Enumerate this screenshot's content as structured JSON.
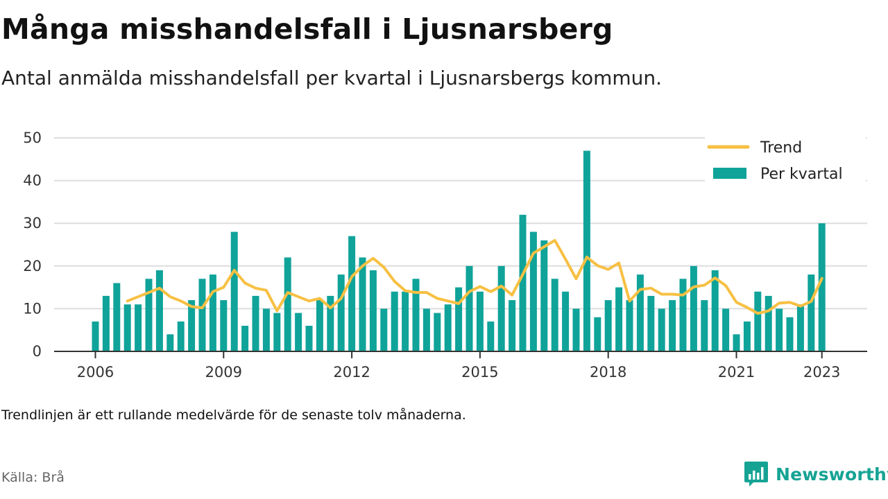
{
  "header": {
    "title": "Många misshandelsfall i Ljusnarsberg",
    "subtitle": "Antal anmälda misshandelsfall per kvartal i Ljusnarsbergs kommun."
  },
  "footer": {
    "note": "Trendlinjen är ett rullande medelvärde för de senaste tolv månaderna.",
    "source": "Källa: Brå",
    "brand": "Newsworthy"
  },
  "colors": {
    "bar": "#0fa39a",
    "trend": "#f7c043",
    "grid": "#dddddd",
    "axis": "#333333",
    "brand": "#16a394"
  },
  "chart_data": {
    "type": "bar",
    "x_ticks": [
      "2006",
      "2009",
      "2012",
      "2015",
      "2018",
      "2021",
      "2023"
    ],
    "y_ticks": [
      0,
      10,
      20,
      30,
      40,
      50
    ],
    "ylim": [
      0,
      50
    ],
    "grid": true,
    "legend_position": "top-right",
    "categories": [
      "2006 K1",
      "2006 K2",
      "2006 K3",
      "2006 K4",
      "2007 K1",
      "2007 K2",
      "2007 K3",
      "2007 K4",
      "2008 K1",
      "2008 K2",
      "2008 K3",
      "2008 K4",
      "2009 K1",
      "2009 K2",
      "2009 K3",
      "2009 K4",
      "2010 K1",
      "2010 K2",
      "2010 K3",
      "2010 K4",
      "2011 K1",
      "2011 K2",
      "2011 K3",
      "2011 K4",
      "2012 K1",
      "2012 K2",
      "2012 K3",
      "2012 K4",
      "2013 K1",
      "2013 K2",
      "2013 K3",
      "2013 K4",
      "2014 K1",
      "2014 K2",
      "2014 K3",
      "2014 K4",
      "2015 K1",
      "2015 K2",
      "2015 K3",
      "2015 K4",
      "2016 K1",
      "2016 K2",
      "2016 K3",
      "2016 K4",
      "2017 K1",
      "2017 K2",
      "2017 K3",
      "2017 K4",
      "2018 K1",
      "2018 K2",
      "2018 K3",
      "2018 K4",
      "2019 K1",
      "2019 K2",
      "2019 K3",
      "2019 K4",
      "2020 K1",
      "2020 K2",
      "2020 K3",
      "2020 K4",
      "2021 K1",
      "2021 K2",
      "2021 K3",
      "2021 K4",
      "2022 K1",
      "2022 K2",
      "2022 K3",
      "2022 K4",
      "2023 K1"
    ],
    "series": [
      {
        "name": "Per kvartal",
        "type": "bar",
        "values": [
          7,
          13,
          16,
          11,
          11,
          17,
          19,
          4,
          7,
          12,
          17,
          18,
          12,
          28,
          6,
          13,
          10,
          9,
          22,
          9,
          6,
          12,
          13,
          18,
          27,
          22,
          19,
          10,
          14,
          14,
          17,
          10,
          9,
          11,
          15,
          20,
          14,
          7,
          20,
          12,
          32,
          28,
          26,
          17,
          14,
          10,
          47,
          8,
          12,
          15,
          12,
          18,
          13,
          10,
          12,
          17,
          20,
          12,
          19,
          10,
          4,
          7,
          14,
          13,
          10,
          8,
          11,
          18,
          30
        ]
      },
      {
        "name": "Trend",
        "type": "line",
        "values": [
          null,
          null,
          null,
          11.8,
          12.8,
          13.8,
          14.8,
          12.8,
          11.8,
          10.5,
          10.2,
          14,
          15,
          19,
          16,
          14.8,
          14.3,
          9.5,
          13.8,
          12.8,
          11.8,
          12.4,
          10.2,
          12.4,
          17.5,
          20,
          21.8,
          19.7,
          16.4,
          14.2,
          13.8,
          13.8,
          12.4,
          11.8,
          11.2,
          14,
          15.2,
          14,
          15.3,
          13.2,
          18,
          23,
          24.5,
          26,
          21.6,
          17,
          22.1,
          20.1,
          19.2,
          20.7,
          11.8,
          14.5,
          14.8,
          13.4,
          13.4,
          13.2,
          15.1,
          15.5,
          17.2,
          15.4,
          11.5,
          10.3,
          8.9,
          9.5,
          11.3,
          11.5,
          10.6,
          11.7,
          17.1
        ]
      }
    ]
  }
}
